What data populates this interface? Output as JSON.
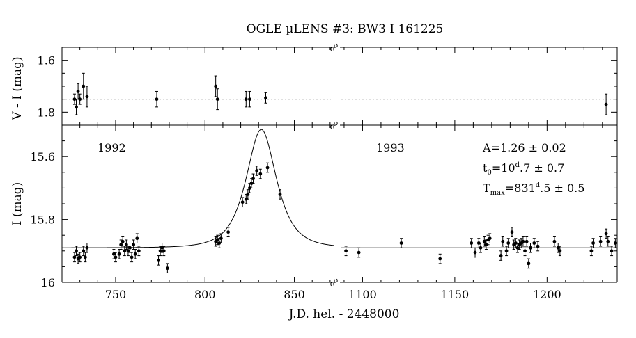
{
  "chart_data": {
    "type": "scatter",
    "title": "OGLE µLENS #3:  BW3 I 161225",
    "xlabel": "J.D. hel. - 2448000",
    "x_segments": [
      {
        "label": "1992",
        "xlim": [
          720,
          872
        ],
        "ticks": [
          "750",
          "800",
          "850"
        ]
      },
      {
        "label": "1993",
        "xlim": [
          1087,
          1238
        ],
        "ticks": [
          "1100",
          "1150",
          "1200"
        ]
      }
    ],
    "top_panel": {
      "ylabel": "V - I (mag)",
      "ylim": [
        1.55,
        1.85
      ],
      "ticks": [
        "1.6",
        "1.8"
      ],
      "reference_level": 1.75,
      "series": {
        "name": "",
        "points": [
          {
            "x": 727,
            "y": 1.75,
            "err": 0.02
          },
          {
            "x": 728,
            "y": 1.78,
            "err": 0.03
          },
          {
            "x": 729,
            "y": 1.72,
            "err": 0.03
          },
          {
            "x": 730,
            "y": 1.75,
            "err": 0.02
          },
          {
            "x": 732,
            "y": 1.7,
            "err": 0.05
          },
          {
            "x": 734,
            "y": 1.74,
            "err": 0.04
          },
          {
            "x": 773,
            "y": 1.75,
            "err": 0.03
          },
          {
            "x": 806,
            "y": 1.7,
            "err": 0.04
          },
          {
            "x": 807,
            "y": 1.75,
            "err": 0.04
          },
          {
            "x": 823,
            "y": 1.75,
            "err": 0.03
          },
          {
            "x": 825,
            "y": 1.75,
            "err": 0.03
          },
          {
            "x": 834,
            "y": 1.745,
            "err": 0.02
          },
          {
            "x": 1232,
            "y": 1.77,
            "err": 0.04
          }
        ]
      }
    },
    "bottom_panel": {
      "ylabel": "I (mag)",
      "ylim": [
        15.5,
        16.0
      ],
      "ticks": [
        "15.6",
        "15.8",
        "16"
      ],
      "baseline": 15.89,
      "model": {
        "u0": 0.91,
        "t0": 831.5,
        "tE": 10.7
      },
      "annotations": {
        "amplification": "A=1.26 ± 0.02",
        "t0": {
          "base": "t",
          "sub": "0",
          "value": "=10",
          "sup": "d",
          "rest": ".7 ± 0.7"
        },
        "tmax": {
          "base": "T",
          "sub": "max",
          "value": "=831",
          "sup": "d",
          "rest": ".5 ± 0.5"
        }
      },
      "series": {
        "name": "",
        "points": [
          {
            "x": 727,
            "y": 15.92,
            "err": 0.015
          },
          {
            "x": 728,
            "y": 15.9,
            "err": 0.015
          },
          {
            "x": 729,
            "y": 15.925,
            "err": 0.015
          },
          {
            "x": 730,
            "y": 15.92,
            "err": 0.015
          },
          {
            "x": 732,
            "y": 15.9,
            "err": 0.015
          },
          {
            "x": 733,
            "y": 15.92,
            "err": 0.015
          },
          {
            "x": 734,
            "y": 15.89,
            "err": 0.015
          },
          {
            "x": 749,
            "y": 15.91,
            "err": 0.015
          },
          {
            "x": 750,
            "y": 15.92,
            "err": 0.015
          },
          {
            "x": 752,
            "y": 15.91,
            "err": 0.015
          },
          {
            "x": 753,
            "y": 15.88,
            "err": 0.015
          },
          {
            "x": 754,
            "y": 15.87,
            "err": 0.015
          },
          {
            "x": 755,
            "y": 15.9,
            "err": 0.015
          },
          {
            "x": 756,
            "y": 15.88,
            "err": 0.015
          },
          {
            "x": 757,
            "y": 15.9,
            "err": 0.015
          },
          {
            "x": 758,
            "y": 15.89,
            "err": 0.015
          },
          {
            "x": 759,
            "y": 15.92,
            "err": 0.015
          },
          {
            "x": 760,
            "y": 15.88,
            "err": 0.015
          },
          {
            "x": 761,
            "y": 15.91,
            "err": 0.015
          },
          {
            "x": 762,
            "y": 15.86,
            "err": 0.015
          },
          {
            "x": 763,
            "y": 15.9,
            "err": 0.015
          },
          {
            "x": 774,
            "y": 15.93,
            "err": 0.015
          },
          {
            "x": 775,
            "y": 15.9,
            "err": 0.015
          },
          {
            "x": 776,
            "y": 15.89,
            "err": 0.015
          },
          {
            "x": 777,
            "y": 15.9,
            "err": 0.015
          },
          {
            "x": 779,
            "y": 15.955,
            "err": 0.015
          },
          {
            "x": 806,
            "y": 15.87,
            "err": 0.015
          },
          {
            "x": 807,
            "y": 15.865,
            "err": 0.015
          },
          {
            "x": 808,
            "y": 15.875,
            "err": 0.015
          },
          {
            "x": 809,
            "y": 15.86,
            "err": 0.015
          },
          {
            "x": 813,
            "y": 15.84,
            "err": 0.015
          },
          {
            "x": 821,
            "y": 15.745,
            "err": 0.015
          },
          {
            "x": 823,
            "y": 15.735,
            "err": 0.015
          },
          {
            "x": 824,
            "y": 15.72,
            "err": 0.015
          },
          {
            "x": 825,
            "y": 15.7,
            "err": 0.015
          },
          {
            "x": 826,
            "y": 15.685,
            "err": 0.015
          },
          {
            "x": 827,
            "y": 15.67,
            "err": 0.015
          },
          {
            "x": 829,
            "y": 15.645,
            "err": 0.015
          },
          {
            "x": 831,
            "y": 15.655,
            "err": 0.015
          },
          {
            "x": 835,
            "y": 15.635,
            "err": 0.015
          },
          {
            "x": 842,
            "y": 15.72,
            "err": 0.015
          },
          {
            "x": 1091,
            "y": 15.9,
            "err": 0.015
          },
          {
            "x": 1098,
            "y": 15.905,
            "err": 0.015
          },
          {
            "x": 1121,
            "y": 15.875,
            "err": 0.015
          },
          {
            "x": 1142,
            "y": 15.925,
            "err": 0.015
          },
          {
            "x": 1159,
            "y": 15.875,
            "err": 0.015
          },
          {
            "x": 1161,
            "y": 15.905,
            "err": 0.015
          },
          {
            "x": 1163,
            "y": 15.875,
            "err": 0.015
          },
          {
            "x": 1164,
            "y": 15.89,
            "err": 0.015
          },
          {
            "x": 1166,
            "y": 15.87,
            "err": 0.015
          },
          {
            "x": 1167,
            "y": 15.88,
            "err": 0.015
          },
          {
            "x": 1168,
            "y": 15.865,
            "err": 0.015
          },
          {
            "x": 1169,
            "y": 15.86,
            "err": 0.015
          },
          {
            "x": 1175,
            "y": 15.915,
            "err": 0.015
          },
          {
            "x": 1176,
            "y": 15.87,
            "err": 0.015
          },
          {
            "x": 1178,
            "y": 15.9,
            "err": 0.015
          },
          {
            "x": 1179,
            "y": 15.875,
            "err": 0.015
          },
          {
            "x": 1181,
            "y": 15.84,
            "err": 0.015
          },
          {
            "x": 1182,
            "y": 15.88,
            "err": 0.015
          },
          {
            "x": 1183,
            "y": 15.875,
            "err": 0.015
          },
          {
            "x": 1184,
            "y": 15.89,
            "err": 0.015
          },
          {
            "x": 1185,
            "y": 15.88,
            "err": 0.015
          },
          {
            "x": 1186,
            "y": 15.875,
            "err": 0.015
          },
          {
            "x": 1187,
            "y": 15.87,
            "err": 0.015
          },
          {
            "x": 1188,
            "y": 15.9,
            "err": 0.015
          },
          {
            "x": 1189,
            "y": 15.87,
            "err": 0.015
          },
          {
            "x": 1190,
            "y": 15.94,
            "err": 0.015
          },
          {
            "x": 1191,
            "y": 15.89,
            "err": 0.015
          },
          {
            "x": 1193,
            "y": 15.875,
            "err": 0.015
          },
          {
            "x": 1195,
            "y": 15.885,
            "err": 0.015
          },
          {
            "x": 1204,
            "y": 15.87,
            "err": 0.015
          },
          {
            "x": 1206,
            "y": 15.89,
            "err": 0.015
          },
          {
            "x": 1207,
            "y": 15.9,
            "err": 0.015
          },
          {
            "x": 1224,
            "y": 15.9,
            "err": 0.015
          },
          {
            "x": 1225,
            "y": 15.875,
            "err": 0.015
          },
          {
            "x": 1229,
            "y": 15.87,
            "err": 0.015
          },
          {
            "x": 1232,
            "y": 15.845,
            "err": 0.015
          },
          {
            "x": 1233,
            "y": 15.87,
            "err": 0.015
          },
          {
            "x": 1235,
            "y": 15.9,
            "err": 0.015
          },
          {
            "x": 1237,
            "y": 15.875,
            "err": 0.015
          }
        ]
      }
    }
  }
}
